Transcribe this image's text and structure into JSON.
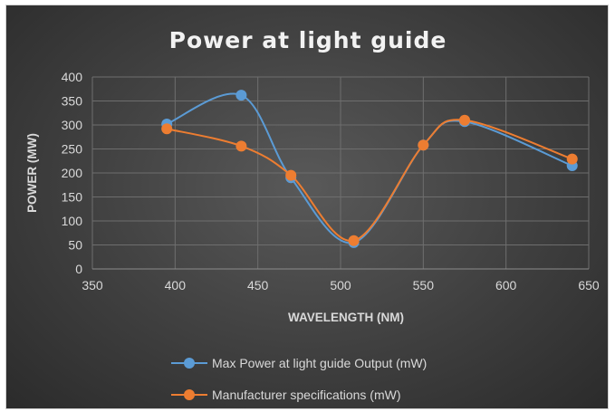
{
  "chart_data": {
    "type": "scatter",
    "title": "Power at light guide",
    "xlabel": "WAVELENGTH (NM)",
    "ylabel": "POWER (MW)",
    "xlim": [
      350,
      650
    ],
    "ylim": [
      0,
      400
    ],
    "x_ticks": [
      "350",
      "400",
      "450",
      "500",
      "550",
      "600",
      "650"
    ],
    "y_ticks": [
      "0",
      "50",
      "100",
      "150",
      "200",
      "250",
      "300",
      "350",
      "400"
    ],
    "grid": true,
    "line_style": "smooth",
    "legend_position": "bottom",
    "series": [
      {
        "name": "Max Power at light guide Output (mW)",
        "color": "#5b9bd5",
        "x": [
          395,
          440,
          470,
          508,
          550,
          575,
          640
        ],
        "y": [
          302,
          362,
          190,
          55,
          258,
          307,
          215
        ]
      },
      {
        "name": "Manufacturer specifications (mW)",
        "color": "#ed7d31",
        "x": [
          395,
          440,
          470,
          508,
          550,
          575,
          640
        ],
        "y": [
          292,
          256,
          195,
          59,
          258,
          310,
          229
        ]
      }
    ]
  }
}
